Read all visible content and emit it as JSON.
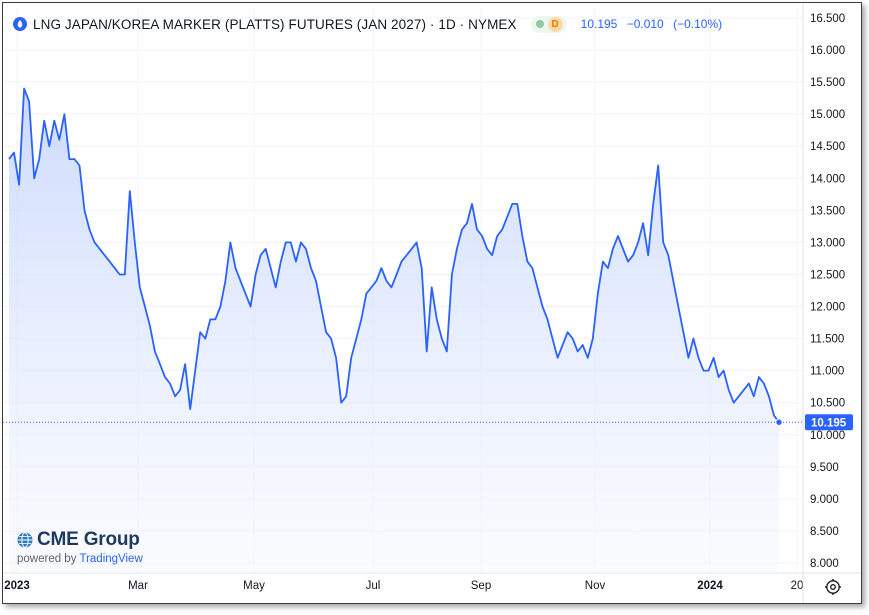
{
  "header": {
    "title": "LNG JAPAN/KOREA MARKER (PLATTS) FUTURES (JAN 2027) · 1D · NYMEX",
    "status_badge": "D",
    "last_price": "10.195",
    "change": "−0.010",
    "change_pct": "(−0.10%)"
  },
  "logo": {
    "brand": "CME Group",
    "powered_prefix": "powered by",
    "powered_brand": "TradingView"
  },
  "colors": {
    "line": "#2962ff",
    "fill_top": "#c7d6fb",
    "fill_bottom": "#f4f7fe",
    "grid": "#f0f3fa",
    "axis_text": "#131722",
    "price_tag": "#2962ff"
  },
  "chart_data": {
    "type": "area",
    "title": "",
    "ylim": [
      8.0,
      16.5
    ],
    "y_ticks": [
      "16.500",
      "16.000",
      "15.500",
      "15.000",
      "14.500",
      "14.000",
      "13.500",
      "13.000",
      "12.500",
      "12.000",
      "11.500",
      "11.000",
      "10.500",
      "10.000",
      "9.500",
      "9.000",
      "8.500",
      "8.000"
    ],
    "x_ticks": [
      {
        "label": "2023",
        "bold": true
      },
      {
        "label": "Mar",
        "bold": false
      },
      {
        "label": "May",
        "bold": false
      },
      {
        "label": "Jul",
        "bold": false
      },
      {
        "label": "Sep",
        "bold": false
      },
      {
        "label": "Nov",
        "bold": false
      },
      {
        "label": "2024",
        "bold": true
      },
      {
        "label": "20",
        "bold": false
      }
    ],
    "last_value": "10.195",
    "series": [
      {
        "values": [
          14.3,
          14.4,
          13.9,
          15.4,
          15.2,
          14.0,
          14.3,
          14.9,
          14.5,
          14.9,
          14.6,
          15.0,
          14.3,
          14.3,
          14.2,
          13.5,
          13.2,
          13.0,
          12.9,
          12.8,
          12.7,
          12.6,
          12.5,
          12.5,
          13.8,
          13.0,
          12.3,
          12.0,
          11.7,
          11.3,
          11.1,
          10.9,
          10.8,
          10.6,
          10.7,
          11.1,
          10.4,
          11.0,
          11.6,
          11.5,
          11.8,
          11.8,
          12.0,
          12.4,
          13.0,
          12.6,
          12.4,
          12.2,
          12.0,
          12.5,
          12.8,
          12.9,
          12.6,
          12.3,
          12.7,
          13.0,
          13.0,
          12.7,
          13.0,
          12.9,
          12.6,
          12.4,
          12.0,
          11.6,
          11.5,
          11.2,
          10.5,
          10.6,
          11.2,
          11.5,
          11.8,
          12.2,
          12.3,
          12.4,
          12.6,
          12.4,
          12.3,
          12.5,
          12.7,
          12.8,
          12.9,
          13.0,
          12.6,
          11.3,
          12.3,
          11.8,
          11.5,
          11.3,
          12.5,
          12.9,
          13.2,
          13.3,
          13.6,
          13.2,
          13.1,
          12.9,
          12.8,
          13.1,
          13.2,
          13.4,
          13.6,
          13.6,
          13.1,
          12.7,
          12.6,
          12.3,
          12.0,
          11.8,
          11.5,
          11.2,
          11.4,
          11.6,
          11.5,
          11.3,
          11.4,
          11.2,
          11.5,
          12.2,
          12.7,
          12.6,
          12.9,
          13.1,
          12.9,
          12.7,
          12.8,
          13.0,
          13.3,
          12.8,
          13.6,
          14.2,
          13.0,
          12.8,
          12.4,
          12.0,
          11.6,
          11.2,
          11.5,
          11.2,
          11.0,
          11.0,
          11.2,
          10.9,
          11.0,
          10.7,
          10.5,
          10.6,
          10.7,
          10.8,
          10.6,
          10.9,
          10.8,
          10.6,
          10.3,
          10.195
        ]
      }
    ]
  }
}
